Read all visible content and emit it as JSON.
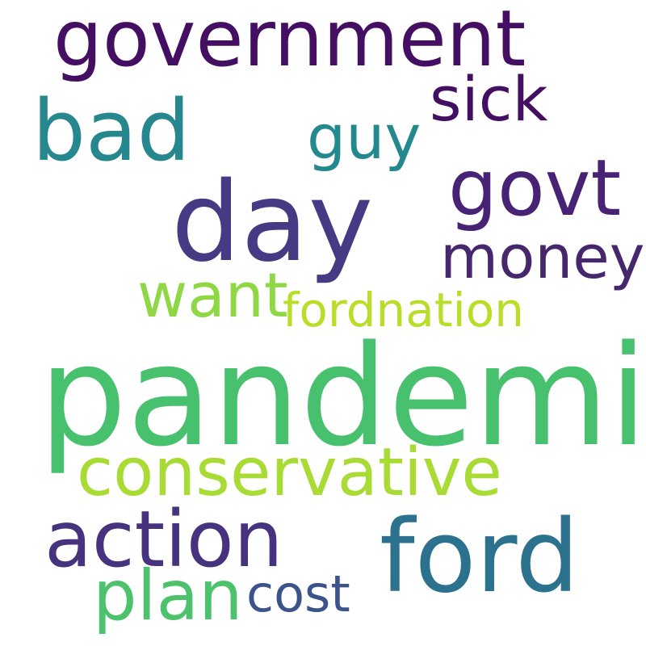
{
  "words": [
    {
      "text": "government",
      "color": "#440f62"
    },
    {
      "text": "bad",
      "color": "#26888e"
    },
    {
      "text": "sick",
      "color": "#430f62"
    },
    {
      "text": "guy",
      "color": "#24898e"
    },
    {
      "text": "day",
      "color": "#443b84"
    },
    {
      "text": "govt",
      "color": "#472275"
    },
    {
      "text": "money",
      "color": "#46276e"
    },
    {
      "text": "want",
      "color": "#8fd744"
    },
    {
      "text": "fordnation",
      "color": "#b8de29"
    },
    {
      "text": "pandemic",
      "color": "#48c16e"
    },
    {
      "text": "conservative",
      "color": "#a8db34"
    },
    {
      "text": "action",
      "color": "#46327e"
    },
    {
      "text": "ford",
      "color": "#2c728e"
    },
    {
      "text": "plan",
      "color": "#4cc26c"
    },
    {
      "text": "cost",
      "color": "#3b528b"
    }
  ]
}
